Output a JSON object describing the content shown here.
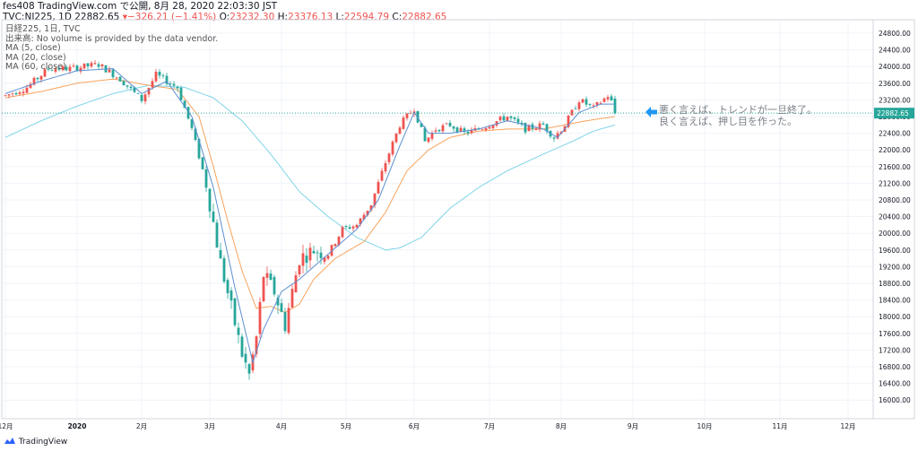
{
  "header": {
    "line1": "fes408 TradingView.com で公開, 8月 28, 2020 22:03:30 JST",
    "symbol": "TVC:NI225, 1D",
    "last": "22882.65",
    "change": "−326.21 (−1.41%)",
    "o_label": "O:",
    "o_val": "23232.30",
    "h_label": "H:",
    "h_val": "23376.13",
    "l_label": "L:",
    "l_val": "22594.79",
    "c_label": "C:",
    "c_val": "22882.65"
  },
  "legend": {
    "title": "日経225, 1日, TVC",
    "volume_note": "出来高: No volume is provided by the data vendor.",
    "ma5": "MA (5, close)",
    "ma20": "MA (20, close)",
    "ma60": "MA (60, close)"
  },
  "annotation": {
    "line1": "悪く言えば、トレンドが一旦終了。",
    "line2": "良く言えば、押し目を作った。"
  },
  "footer": {
    "brand": "TradingView"
  },
  "colors": {
    "up": "#ef5350",
    "down": "#26a69a",
    "ma5": "#5b8fd0",
    "ma20": "#f7a35c",
    "ma60": "#7fd4e8",
    "last_line": "#26a69a",
    "accent": "#2196f3"
  },
  "chart_data": {
    "type": "candlestick",
    "price_axis_ticks": [
      "24800.00",
      "24400.00",
      "24000.00",
      "23600.00",
      "23200.00",
      "22800.00",
      "22400.00",
      "22000.00",
      "21600.00",
      "21200.00",
      "20800.00",
      "20400.00",
      "20000.00",
      "19600.00",
      "19200.00",
      "18800.00",
      "18400.00",
      "18000.00",
      "17600.00",
      "17200.00",
      "16800.00",
      "16400.00",
      "16000.00"
    ],
    "price_tick_values": [
      24800,
      24400,
      24000,
      23600,
      23200,
      22800,
      22400,
      22000,
      21600,
      21200,
      20800,
      20400,
      20000,
      19600,
      19200,
      18800,
      18400,
      18000,
      17600,
      17200,
      16800,
      16400,
      16000
    ],
    "last_price_label": "22882.65",
    "last_price": 22882.65,
    "ylim": [
      15700,
      25200
    ],
    "time_axis_labels": [
      "12月",
      "2020",
      "2月",
      "3月",
      "4月",
      "5月",
      "6月",
      "7月",
      "8月",
      "9月",
      "10月",
      "11月",
      "12月"
    ],
    "time_axis_days": [
      0,
      20,
      38,
      57,
      77,
      95,
      114,
      135,
      155,
      175,
      195,
      216,
      235
    ],
    "grid": true,
    "ohlc_knots": [
      [
        0,
        23300
      ],
      [
        6,
        23500
      ],
      [
        12,
        23950
      ],
      [
        18,
        23950
      ],
      [
        26,
        24050
      ],
      [
        32,
        23700
      ],
      [
        38,
        23200
      ],
      [
        42,
        23800
      ],
      [
        48,
        23500
      ],
      [
        52,
        22500
      ],
      [
        56,
        21200
      ],
      [
        60,
        19300
      ],
      [
        63,
        18200
      ],
      [
        66,
        17100
      ],
      [
        68,
        16600
      ],
      [
        70,
        17500
      ],
      [
        72,
        19000
      ],
      [
        75,
        18600
      ],
      [
        78,
        17800
      ],
      [
        82,
        19400
      ],
      [
        86,
        19600
      ],
      [
        90,
        19500
      ],
      [
        94,
        20100
      ],
      [
        98,
        20200
      ],
      [
        102,
        20700
      ],
      [
        106,
        21700
      ],
      [
        110,
        22600
      ],
      [
        114,
        23000
      ],
      [
        117,
        22200
      ],
      [
        120,
        22500
      ],
      [
        124,
        22600
      ],
      [
        128,
        22400
      ],
      [
        132,
        22500
      ],
      [
        136,
        22650
      ],
      [
        140,
        22800
      ],
      [
        145,
        22500
      ],
      [
        150,
        22600
      ],
      [
        153,
        22300
      ],
      [
        156,
        22600
      ],
      [
        160,
        23200
      ],
      [
        164,
        23000
      ],
      [
        168,
        23300
      ],
      [
        170,
        23000
      ]
    ],
    "ma5_knots": [
      [
        0,
        23350
      ],
      [
        10,
        23650
      ],
      [
        20,
        23900
      ],
      [
        30,
        23950
      ],
      [
        38,
        23350
      ],
      [
        45,
        23650
      ],
      [
        52,
        22800
      ],
      [
        58,
        21100
      ],
      [
        64,
        18700
      ],
      [
        69,
        16900
      ],
      [
        72,
        17700
      ],
      [
        77,
        18600
      ],
      [
        82,
        18900
      ],
      [
        90,
        19500
      ],
      [
        98,
        20100
      ],
      [
        104,
        20800
      ],
      [
        110,
        22100
      ],
      [
        114,
        22900
      ],
      [
        118,
        22400
      ],
      [
        124,
        22400
      ],
      [
        132,
        22500
      ],
      [
        140,
        22700
      ],
      [
        150,
        22500
      ],
      [
        154,
        22300
      ],
      [
        160,
        22900
      ],
      [
        166,
        23100
      ],
      [
        170,
        23100
      ]
    ],
    "ma20_knots": [
      [
        0,
        23250
      ],
      [
        10,
        23400
      ],
      [
        20,
        23600
      ],
      [
        30,
        23700
      ],
      [
        40,
        23550
      ],
      [
        48,
        23450
      ],
      [
        54,
        22800
      ],
      [
        58,
        21600
      ],
      [
        62,
        20300
      ],
      [
        66,
        19100
      ],
      [
        70,
        18200
      ],
      [
        74,
        18250
      ],
      [
        78,
        18100
      ],
      [
        82,
        18300
      ],
      [
        86,
        18900
      ],
      [
        92,
        19400
      ],
      [
        100,
        19800
      ],
      [
        106,
        20500
      ],
      [
        112,
        21500
      ],
      [
        118,
        22000
      ],
      [
        124,
        22300
      ],
      [
        132,
        22450
      ],
      [
        140,
        22500
      ],
      [
        150,
        22500
      ],
      [
        156,
        22600
      ],
      [
        162,
        22700
      ],
      [
        170,
        22800
      ]
    ],
    "ma60_knots": [
      [
        0,
        22300
      ],
      [
        10,
        22700
      ],
      [
        20,
        23050
      ],
      [
        30,
        23350
      ],
      [
        40,
        23550
      ],
      [
        50,
        23500
      ],
      [
        58,
        23250
      ],
      [
        66,
        22700
      ],
      [
        74,
        21900
      ],
      [
        82,
        21000
      ],
      [
        90,
        20400
      ],
      [
        98,
        19900
      ],
      [
        106,
        19600
      ],
      [
        110,
        19650
      ],
      [
        116,
        19900
      ],
      [
        124,
        20600
      ],
      [
        132,
        21100
      ],
      [
        140,
        21500
      ],
      [
        150,
        21900
      ],
      [
        158,
        22200
      ],
      [
        164,
        22450
      ],
      [
        170,
        22600
      ]
    ]
  }
}
